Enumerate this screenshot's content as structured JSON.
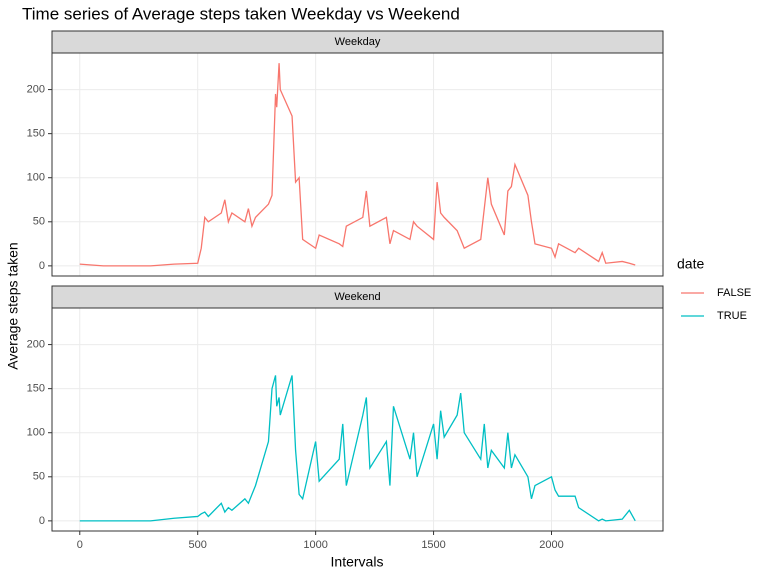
{
  "chart_data": {
    "type": "line",
    "title": "Time series of Average steps taken Weekday vs Weekend",
    "xlabel": "Intervals",
    "ylabel": "Average steps taken",
    "legend_title": "date",
    "grid": true,
    "xlim": [
      -117.75,
      2472.75
    ],
    "xticks": [
      0,
      500,
      1000,
      1500,
      2000
    ],
    "ylim": [
      -11.5,
      241.5
    ],
    "yticks": [
      0,
      50,
      100,
      150,
      200
    ],
    "x": [
      0,
      100,
      200,
      300,
      400,
      500,
      515,
      530,
      545,
      600,
      615,
      630,
      645,
      700,
      715,
      730,
      745,
      800,
      815,
      830,
      835,
      845,
      850,
      900,
      915,
      930,
      945,
      1000,
      1015,
      1100,
      1115,
      1130,
      1200,
      1215,
      1230,
      1300,
      1315,
      1330,
      1400,
      1415,
      1430,
      1500,
      1515,
      1530,
      1545,
      1600,
      1615,
      1630,
      1700,
      1715,
      1730,
      1745,
      1800,
      1815,
      1830,
      1845,
      1900,
      1915,
      1930,
      2000,
      2015,
      2030,
      2100,
      2115,
      2200,
      2215,
      2230,
      2300,
      2330,
      2355
    ],
    "panels": [
      {
        "label": "Weekday",
        "series": [
          {
            "name": "FALSE",
            "color": "#F8766D",
            "values": [
              2,
              0,
              0,
              0,
              2,
              3,
              20,
              55,
              50,
              60,
              75,
              50,
              60,
              50,
              65,
              45,
              55,
              70,
              80,
              195,
              180,
              230,
              200,
              170,
              95,
              100,
              30,
              20,
              35,
              25,
              22,
              45,
              55,
              85,
              45,
              55,
              25,
              40,
              30,
              50,
              45,
              30,
              95,
              60,
              55,
              40,
              30,
              20,
              30,
              65,
              100,
              70,
              35,
              85,
              90,
              115,
              80,
              50,
              25,
              20,
              10,
              25,
              15,
              20,
              5,
              15,
              3,
              5,
              3,
              1
            ]
          }
        ]
      },
      {
        "label": "Weekend",
        "series": [
          {
            "name": "TRUE",
            "color": "#00BFC4",
            "values": [
              0,
              0,
              0,
              0,
              3,
              5,
              8,
              10,
              5,
              20,
              10,
              15,
              12,
              25,
              20,
              30,
              40,
              90,
              150,
              165,
              130,
              140,
              120,
              165,
              80,
              30,
              25,
              90,
              45,
              70,
              110,
              40,
              120,
              140,
              60,
              90,
              40,
              130,
              70,
              100,
              50,
              110,
              70,
              125,
              95,
              120,
              145,
              100,
              70,
              110,
              60,
              80,
              60,
              100,
              60,
              75,
              50,
              25,
              40,
              50,
              35,
              28,
              28,
              15,
              0,
              2,
              0,
              2,
              12,
              0
            ]
          }
        ]
      }
    ]
  }
}
